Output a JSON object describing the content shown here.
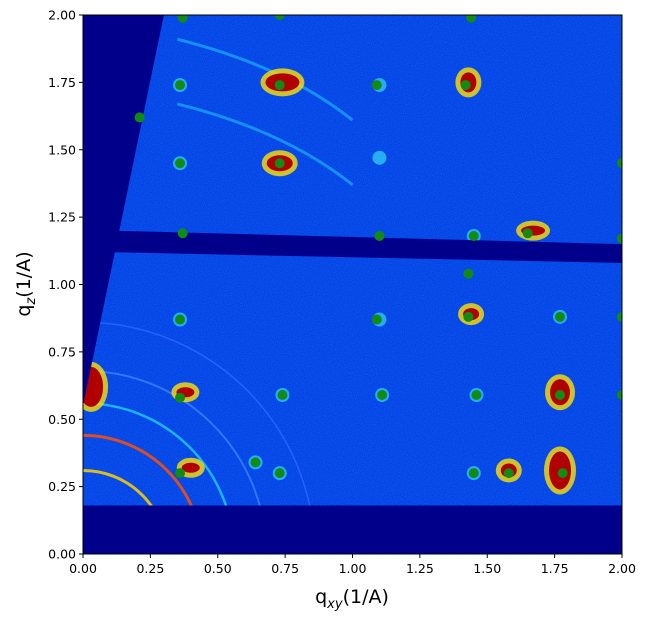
{
  "chart_data": {
    "type": "scatter",
    "title": "",
    "xlabel": "q",
    "xlabel_sub": "xy",
    "xlabel_unit": "(1/A)",
    "ylabel": "q",
    "ylabel_sub": "z",
    "ylabel_unit": "(1/A)",
    "xlim": [
      0,
      2
    ],
    "ylim": [
      0,
      2
    ],
    "x_ticks": [
      "0.00",
      "0.25",
      "0.50",
      "0.75",
      "1.00",
      "1.25",
      "1.50",
      "1.75",
      "2.00"
    ],
    "y_ticks": [
      "0.00",
      "0.25",
      "0.50",
      "0.75",
      "1.00",
      "1.25",
      "1.50",
      "1.75",
      "2.00"
    ],
    "grid": false,
    "colormap": "jet",
    "background_color": "#00008b",
    "marker_color": "#138a13",
    "series": [
      {
        "marker": "circle",
        "points": [
          [
            0.37,
            1.99
          ],
          [
            0.73,
            2.0
          ],
          [
            1.44,
            1.99
          ],
          [
            0.36,
            1.74
          ],
          [
            0.73,
            1.74
          ],
          [
            1.09,
            1.74
          ],
          [
            1.42,
            1.74
          ],
          [
            0.21,
            1.62
          ],
          [
            0.36,
            1.45
          ],
          [
            0.73,
            1.45
          ],
          [
            2.0,
            1.45
          ],
          [
            0.37,
            1.19
          ],
          [
            1.1,
            1.18
          ],
          [
            1.45,
            1.18
          ],
          [
            1.65,
            1.19
          ],
          [
            2.0,
            1.17
          ],
          [
            1.43,
            1.04
          ],
          [
            0.36,
            0.87
          ],
          [
            1.09,
            0.87
          ],
          [
            1.43,
            0.88
          ],
          [
            1.77,
            0.88
          ],
          [
            2.0,
            0.88
          ],
          [
            0.36,
            0.58
          ],
          [
            0.74,
            0.59
          ],
          [
            1.11,
            0.59
          ],
          [
            1.46,
            0.59
          ],
          [
            1.77,
            0.59
          ],
          [
            2.0,
            0.59
          ],
          [
            0.36,
            0.3
          ],
          [
            0.64,
            0.34
          ],
          [
            0.73,
            0.3
          ],
          [
            1.45,
            0.3
          ],
          [
            1.58,
            0.3
          ],
          [
            1.78,
            0.3
          ]
        ]
      }
    ]
  }
}
